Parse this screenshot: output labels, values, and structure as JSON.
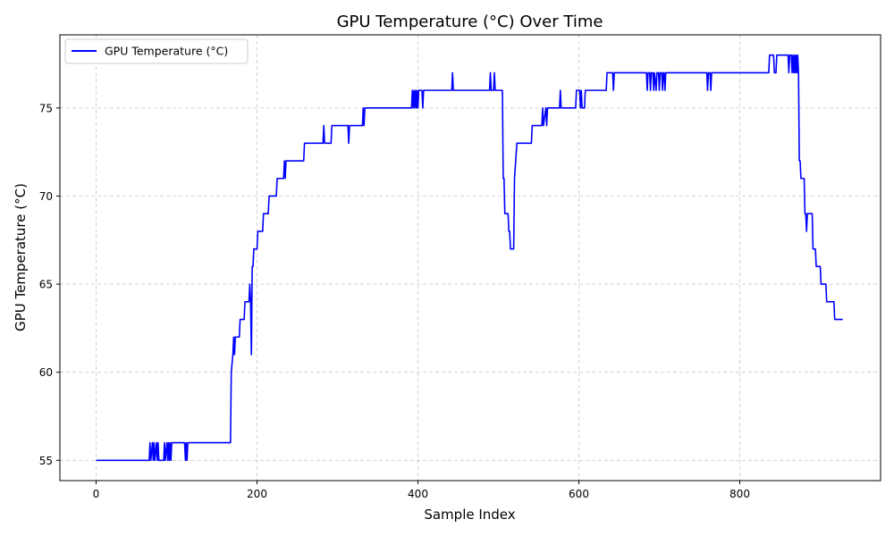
{
  "chart_data": {
    "type": "line",
    "title": "GPU Temperature (°C) Over Time",
    "xlabel": "Sample Index",
    "ylabel": "GPU Temperature (°C)",
    "xlim": [
      -45,
      975
    ],
    "ylim": [
      53.85,
      79.15
    ],
    "xticks": [
      0,
      200,
      400,
      600,
      800
    ],
    "yticks": [
      55,
      60,
      65,
      70,
      75
    ],
    "grid": true,
    "legend": {
      "position": "top-left"
    },
    "series": [
      {
        "name": "GPU Temperature (°C)",
        "color": "#0000ff",
        "points": [
          [
            0,
            55
          ],
          [
            66,
            55
          ],
          [
            67,
            56
          ],
          [
            68,
            55
          ],
          [
            70,
            56
          ],
          [
            71,
            55
          ],
          [
            72,
            56
          ],
          [
            73,
            55
          ],
          [
            75,
            56
          ],
          [
            76,
            55
          ],
          [
            77,
            56
          ],
          [
            78,
            55
          ],
          [
            84,
            55
          ],
          [
            85,
            56
          ],
          [
            86,
            55
          ],
          [
            88,
            56
          ],
          [
            89,
            55
          ],
          [
            90,
            56
          ],
          [
            91,
            55
          ],
          [
            92,
            56
          ],
          [
            93,
            55
          ],
          [
            94,
            56
          ],
          [
            110,
            56
          ],
          [
            111,
            55
          ],
          [
            112,
            56
          ],
          [
            113,
            55
          ],
          [
            114,
            56
          ],
          [
            167,
            56
          ],
          [
            168,
            60
          ],
          [
            170,
            61
          ],
          [
            171,
            62
          ],
          [
            172,
            61
          ],
          [
            173,
            62
          ],
          [
            178,
            62
          ],
          [
            179,
            63
          ],
          [
            184,
            63
          ],
          [
            185,
            64
          ],
          [
            190,
            64
          ],
          [
            191,
            65
          ],
          [
            192,
            64
          ],
          [
            193,
            61
          ],
          [
            194,
            66
          ],
          [
            195,
            66
          ],
          [
            196,
            67
          ],
          [
            200,
            67
          ],
          [
            201,
            68
          ],
          [
            207,
            68
          ],
          [
            208,
            69
          ],
          [
            214,
            69
          ],
          [
            215,
            70
          ],
          [
            224,
            70
          ],
          [
            225,
            71
          ],
          [
            233,
            71
          ],
          [
            234,
            72
          ],
          [
            235,
            71
          ],
          [
            236,
            72
          ],
          [
            258,
            72
          ],
          [
            259,
            73
          ],
          [
            282,
            73
          ],
          [
            283,
            74
          ],
          [
            284,
            73
          ],
          [
            292,
            73
          ],
          [
            293,
            74
          ],
          [
            313,
            74
          ],
          [
            314,
            73
          ],
          [
            315,
            74
          ],
          [
            331,
            74
          ],
          [
            332,
            75
          ],
          [
            333,
            74
          ],
          [
            334,
            75
          ],
          [
            392,
            75
          ],
          [
            393,
            76
          ],
          [
            394,
            75
          ],
          [
            395,
            76
          ],
          [
            396,
            75
          ],
          [
            397,
            76
          ],
          [
            398,
            75
          ],
          [
            399,
            76
          ],
          [
            400,
            75
          ],
          [
            401,
            76
          ],
          [
            405,
            76
          ],
          [
            406,
            75
          ],
          [
            407,
            76
          ],
          [
            442,
            76
          ],
          [
            443,
            77
          ],
          [
            444,
            76
          ],
          [
            489,
            76
          ],
          [
            490,
            77
          ],
          [
            491,
            76
          ],
          [
            494,
            76
          ],
          [
            495,
            77
          ],
          [
            496,
            76
          ],
          [
            505,
            76
          ],
          [
            506,
            71
          ],
          [
            507,
            71
          ],
          [
            508,
            69
          ],
          [
            512,
            69
          ],
          [
            513,
            68
          ],
          [
            514,
            68
          ],
          [
            515,
            67
          ],
          [
            519,
            67
          ],
          [
            520,
            71
          ],
          [
            523,
            73
          ],
          [
            541,
            73
          ],
          [
            542,
            74
          ],
          [
            554,
            74
          ],
          [
            555,
            75
          ],
          [
            556,
            74
          ],
          [
            559,
            75
          ],
          [
            560,
            74
          ],
          [
            561,
            75
          ],
          [
            576,
            75
          ],
          [
            577,
            76
          ],
          [
            578,
            75
          ],
          [
            596,
            75
          ],
          [
            597,
            76
          ],
          [
            601,
            76
          ],
          [
            602,
            75
          ],
          [
            603,
            76
          ],
          [
            604,
            75
          ],
          [
            607,
            75
          ],
          [
            608,
            76
          ],
          [
            634,
            76
          ],
          [
            635,
            77
          ],
          [
            642,
            77
          ],
          [
            643,
            76
          ],
          [
            644,
            77
          ],
          [
            684,
            77
          ],
          [
            685,
            76
          ],
          [
            686,
            77
          ],
          [
            688,
            77
          ],
          [
            689,
            76
          ],
          [
            690,
            77
          ],
          [
            692,
            77
          ],
          [
            693,
            76
          ],
          [
            694,
            77
          ],
          [
            696,
            76
          ],
          [
            697,
            77
          ],
          [
            699,
            77
          ],
          [
            700,
            76
          ],
          [
            701,
            77
          ],
          [
            703,
            77
          ],
          [
            704,
            76
          ],
          [
            705,
            77
          ],
          [
            706,
            77
          ],
          [
            707,
            76
          ],
          [
            708,
            77
          ],
          [
            759,
            77
          ],
          [
            760,
            76
          ],
          [
            761,
            77
          ],
          [
            763,
            77
          ],
          [
            764,
            76
          ],
          [
            765,
            77
          ],
          [
            836,
            77
          ],
          [
            837,
            78
          ],
          [
            842,
            78
          ],
          [
            843,
            77
          ],
          [
            845,
            77
          ],
          [
            846,
            78
          ],
          [
            860,
            78
          ],
          [
            861,
            77
          ],
          [
            862,
            78
          ],
          [
            864,
            78
          ],
          [
            865,
            77
          ],
          [
            866,
            78
          ],
          [
            867,
            77
          ],
          [
            868,
            78
          ],
          [
            869,
            77
          ],
          [
            870,
            78
          ],
          [
            871,
            77
          ],
          [
            872,
            78
          ],
          [
            873,
            77
          ],
          [
            874,
            72
          ],
          [
            875,
            72
          ],
          [
            876,
            71
          ],
          [
            880,
            71
          ],
          [
            881,
            69
          ],
          [
            882,
            69
          ],
          [
            883,
            68
          ],
          [
            884,
            69
          ],
          [
            890,
            69
          ],
          [
            891,
            67
          ],
          [
            894,
            67
          ],
          [
            895,
            66
          ],
          [
            900,
            66
          ],
          [
            901,
            65
          ],
          [
            907,
            65
          ],
          [
            908,
            64
          ],
          [
            917,
            64
          ],
          [
            918,
            63
          ],
          [
            928,
            63
          ]
        ]
      }
    ]
  }
}
